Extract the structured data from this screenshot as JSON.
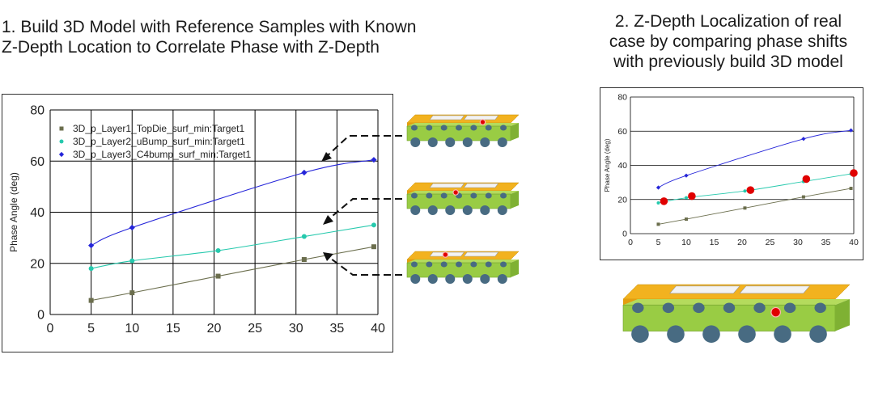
{
  "left_heading": {
    "line1": "1. Build 3D Model with Reference Samples with Known",
    "line2": "Z-Depth Location to Correlate Phase with Z-Depth"
  },
  "right_heading": {
    "line1": "2. Z-Depth Localization of real",
    "line2": "case by comparing phase shifts",
    "line3": "with previously build 3D model"
  },
  "colors": {
    "topdie": "#6b6e4d",
    "ubump": "#26c9ad",
    "c4bump": "#2525d9",
    "real_case": "#e00000",
    "die_gold": "#f2b21f",
    "substrate_green": "#99cc44",
    "bump_blue": "#486b82"
  },
  "chart_data": [
    {
      "type": "line",
      "xlabel": "",
      "ylabel": "Phase Angle (deg)",
      "xlim": [
        0,
        40
      ],
      "ylim": [
        0,
        80
      ],
      "x_ticks": [
        0,
        5,
        10,
        15,
        20,
        25,
        30,
        35,
        40
      ],
      "y_ticks": [
        0,
        20,
        40,
        60,
        80
      ],
      "grid": true,
      "legend_position": "top-left",
      "series": [
        {
          "name": "3D_p_Layer1_TopDie_surf_min:Target1",
          "color": "#6b6e4d",
          "marker": "square",
          "x": [
            5,
            10,
            20.5,
            31,
            39.5
          ],
          "y": [
            5.5,
            8.5,
            15,
            21.5,
            26.5
          ]
        },
        {
          "name": "3D_p_Layer2_uBump_surf_min:Target1",
          "color": "#26c9ad",
          "marker": "circle",
          "x": [
            5,
            10,
            20.5,
            31,
            39.5
          ],
          "y": [
            18,
            21,
            25,
            30.5,
            35
          ]
        },
        {
          "name": "3D_p_Layer3_C4bump_surf_min:Target1",
          "color": "#2525d9",
          "marker": "diamond",
          "x": [
            5,
            10,
            31,
            39.5
          ],
          "y": [
            27,
            34,
            55.5,
            60.5
          ]
        }
      ]
    },
    {
      "type": "line",
      "xlabel": "",
      "ylabel": "Phase Angle (deg)",
      "xlim": [
        0,
        40
      ],
      "ylim": [
        0,
        80
      ],
      "x_ticks": [
        0,
        5,
        10,
        15,
        20,
        25,
        30,
        35,
        40
      ],
      "y_ticks": [
        0,
        20,
        40,
        60,
        80
      ],
      "grid": "horizontal",
      "series": [
        {
          "color": "#6b6e4d",
          "marker": "square",
          "x": [
            5,
            10,
            20.5,
            31,
            39.5
          ],
          "y": [
            5.5,
            8.5,
            15,
            21.5,
            26.5
          ]
        },
        {
          "color": "#26c9ad",
          "marker": "circle",
          "x": [
            5,
            10,
            20.5,
            31,
            39.5
          ],
          "y": [
            18,
            21,
            25,
            30.5,
            35
          ]
        },
        {
          "color": "#2525d9",
          "marker": "diamond",
          "x": [
            5,
            10,
            31,
            39.5
          ],
          "y": [
            27,
            34,
            55.5,
            60.5
          ]
        },
        {
          "color": "#e00000",
          "marker": "large-dot",
          "x": [
            6,
            11,
            21.5,
            31.5,
            40
          ],
          "y": [
            19,
            22,
            25.5,
            32,
            35.5
          ]
        }
      ]
    }
  ]
}
